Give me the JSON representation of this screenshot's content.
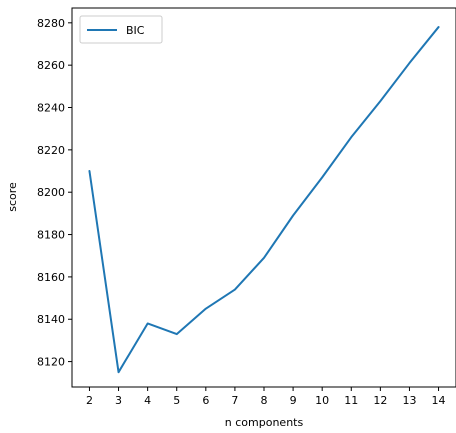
{
  "chart_data": {
    "type": "line",
    "x": [
      2,
      3,
      4,
      5,
      6,
      7,
      8,
      9,
      10,
      11,
      12,
      13,
      14
    ],
    "series": [
      {
        "name": "BIC",
        "color": "#1f77b4",
        "values": [
          8210,
          8115,
          8138,
          8133,
          8145,
          8154,
          8169,
          8189,
          8207,
          8226,
          8243,
          8261,
          8278
        ]
      }
    ],
    "xlabel": "n components",
    "ylabel": "score",
    "xlim": [
      1.4,
      14.6
    ],
    "ylim": [
      8108,
      8287
    ],
    "xticks": [
      2,
      3,
      4,
      5,
      6,
      7,
      8,
      9,
      10,
      11,
      12,
      13,
      14
    ],
    "yticks": [
      8120,
      8140,
      8160,
      8180,
      8200,
      8220,
      8240,
      8260,
      8280
    ],
    "grid": false,
    "legend": "top-left"
  }
}
